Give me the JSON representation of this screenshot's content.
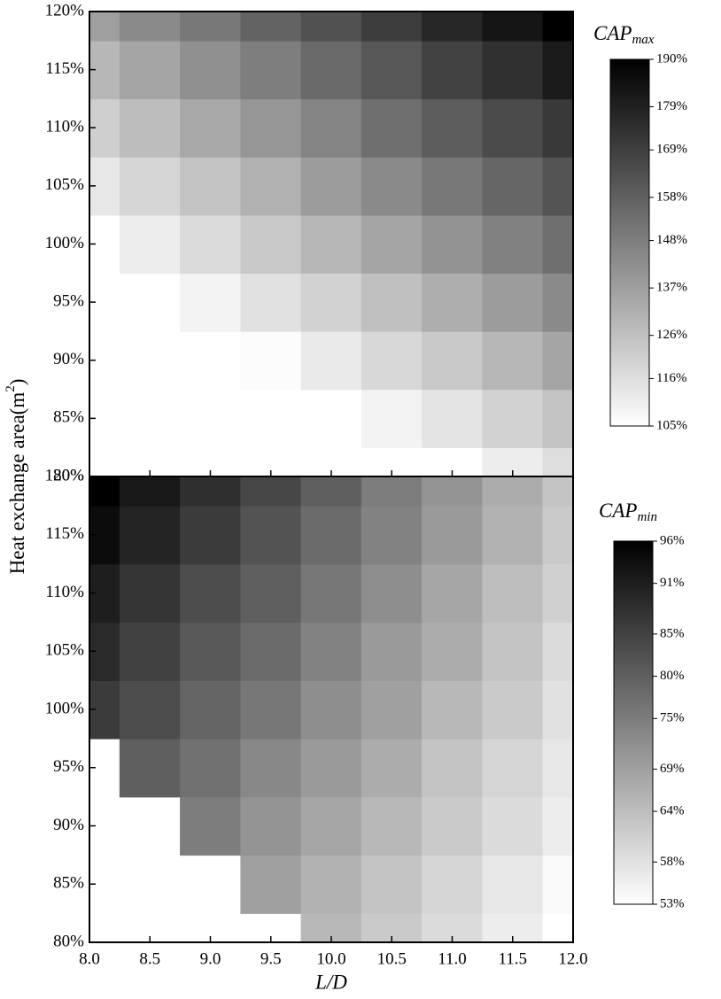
{
  "chart_data": [
    {
      "type": "contour",
      "ylabel": [
        "Heat exchange area(m",
        "2",
        ")"
      ],
      "x": [
        8.0,
        8.5,
        9.0,
        9.5,
        10.0,
        10.5,
        11.0,
        11.5,
        12.0
      ],
      "y": [
        80,
        85,
        90,
        95,
        100,
        105,
        110,
        115,
        120
      ],
      "z": [
        [
          73,
          78,
          84,
          89,
          95,
          100,
          105,
          111,
          116
        ],
        [
          81,
          87,
          92,
          98,
          103,
          109,
          114,
          120,
          125
        ],
        [
          89,
          95,
          100,
          106,
          112,
          118,
          123,
          129,
          135
        ],
        [
          97,
          103,
          109,
          115,
          120,
          126,
          132,
          138,
          144
        ],
        [
          105,
          111,
          117,
          123,
          129,
          135,
          141,
          147,
          153
        ],
        [
          113,
          119,
          125,
          131,
          138,
          144,
          150,
          156,
          162
        ],
        [
          121,
          127,
          134,
          140,
          146,
          153,
          159,
          165,
          171
        ],
        [
          129,
          135,
          142,
          148,
          155,
          161,
          168,
          174,
          181
        ],
        [
          137,
          144,
          150,
          157,
          163,
          170,
          177,
          183,
          190
        ]
      ],
      "xlim": [
        8,
        12
      ],
      "ylim": [
        80,
        120
      ],
      "yticks": [
        {
          "value": 80,
          "label": "80%"
        },
        {
          "value": 85,
          "label": "85%"
        },
        {
          "value": 90,
          "label": "90%"
        },
        {
          "value": 95,
          "label": "95%"
        },
        {
          "value": 100,
          "label": "100%"
        },
        {
          "value": 105,
          "label": "105%"
        },
        {
          "value": 110,
          "label": "110%"
        },
        {
          "value": 115,
          "label": "115%"
        },
        {
          "value": 120,
          "label": "120%"
        }
      ],
      "colorbar": {
        "label": "CAP",
        "label_sub": "max",
        "lim": [
          105,
          190
        ],
        "ticks": [
          {
            "value": 105,
            "label": "105%"
          },
          {
            "value": 116,
            "label": "116%"
          },
          {
            "value": 126,
            "label": "126%"
          },
          {
            "value": 137,
            "label": "137%"
          },
          {
            "value": 148,
            "label": "148%"
          },
          {
            "value": 158,
            "label": "158%"
          },
          {
            "value": 169,
            "label": "169%"
          },
          {
            "value": 179,
            "label": "179%"
          },
          {
            "value": 190,
            "label": "190%"
          }
        ]
      }
    },
    {
      "type": "contour",
      "xlabel": "L/D",
      "x": [
        8.0,
        8.5,
        9.0,
        9.5,
        10.0,
        10.5,
        11.0,
        11.5,
        12.0
      ],
      "y": [
        80,
        85,
        90,
        95,
        100,
        105,
        110,
        115,
        120
      ],
      "z": [
        [
          null,
          null,
          null,
          null,
          65,
          62,
          59,
          56,
          53
        ],
        [
          null,
          null,
          null,
          69,
          66,
          63,
          60,
          57,
          54
        ],
        [
          null,
          null,
          75,
          71,
          68,
          65,
          62,
          59,
          56
        ],
        [
          null,
          80,
          77,
          73,
          70,
          67,
          63,
          60,
          57
        ],
        [
          86,
          83,
          79,
          76,
          72,
          69,
          65,
          62,
          58
        ],
        [
          89,
          85,
          81,
          78,
          74,
          70,
          67,
          63,
          59
        ],
        [
          91,
          87,
          83,
          80,
          76,
          72,
          68,
          64,
          61
        ],
        [
          94,
          90,
          86,
          82,
          78,
          74,
          70,
          66,
          62
        ],
        [
          96,
          92,
          88,
          84,
          80,
          75,
          71,
          67,
          63
        ]
      ],
      "xlim": [
        8,
        12
      ],
      "ylim": [
        80,
        120
      ],
      "xticks": [
        {
          "value": 8,
          "label": "8.0"
        },
        8.5,
        {
          "value": 9,
          "label": "9.0"
        },
        9.5,
        {
          "value": 10,
          "label": "10.0"
        },
        10.5,
        {
          "value": 11,
          "label": "11.0"
        },
        11.5,
        {
          "value": 12,
          "label": "12.0"
        }
      ],
      "yticks": [
        {
          "value": 80,
          "label": "80%"
        },
        {
          "value": 85,
          "label": "85%"
        },
        {
          "value": 90,
          "label": "90%"
        },
        {
          "value": 95,
          "label": "95%"
        },
        {
          "value": 100,
          "label": "100%"
        },
        {
          "value": 105,
          "label": "105%"
        },
        {
          "value": 110,
          "label": "110%"
        },
        {
          "value": 115,
          "label": "115%"
        },
        {
          "value": 120,
          "label": "120%"
        }
      ],
      "colorbar": {
        "label": "CAP",
        "label_sub": "min",
        "lim": [
          53,
          96
        ],
        "ticks": [
          {
            "value": 53,
            "label": "53%"
          },
          {
            "value": 58,
            "label": "58%"
          },
          {
            "value": 64,
            "label": "64%"
          },
          {
            "value": 69,
            "label": "69%"
          },
          {
            "value": 75,
            "label": "75%"
          },
          {
            "value": 80,
            "label": "80%"
          },
          {
            "value": 85,
            "label": "85%"
          },
          {
            "value": 91,
            "label": "91%"
          },
          {
            "value": 96,
            "label": "96%"
          }
        ]
      }
    }
  ]
}
